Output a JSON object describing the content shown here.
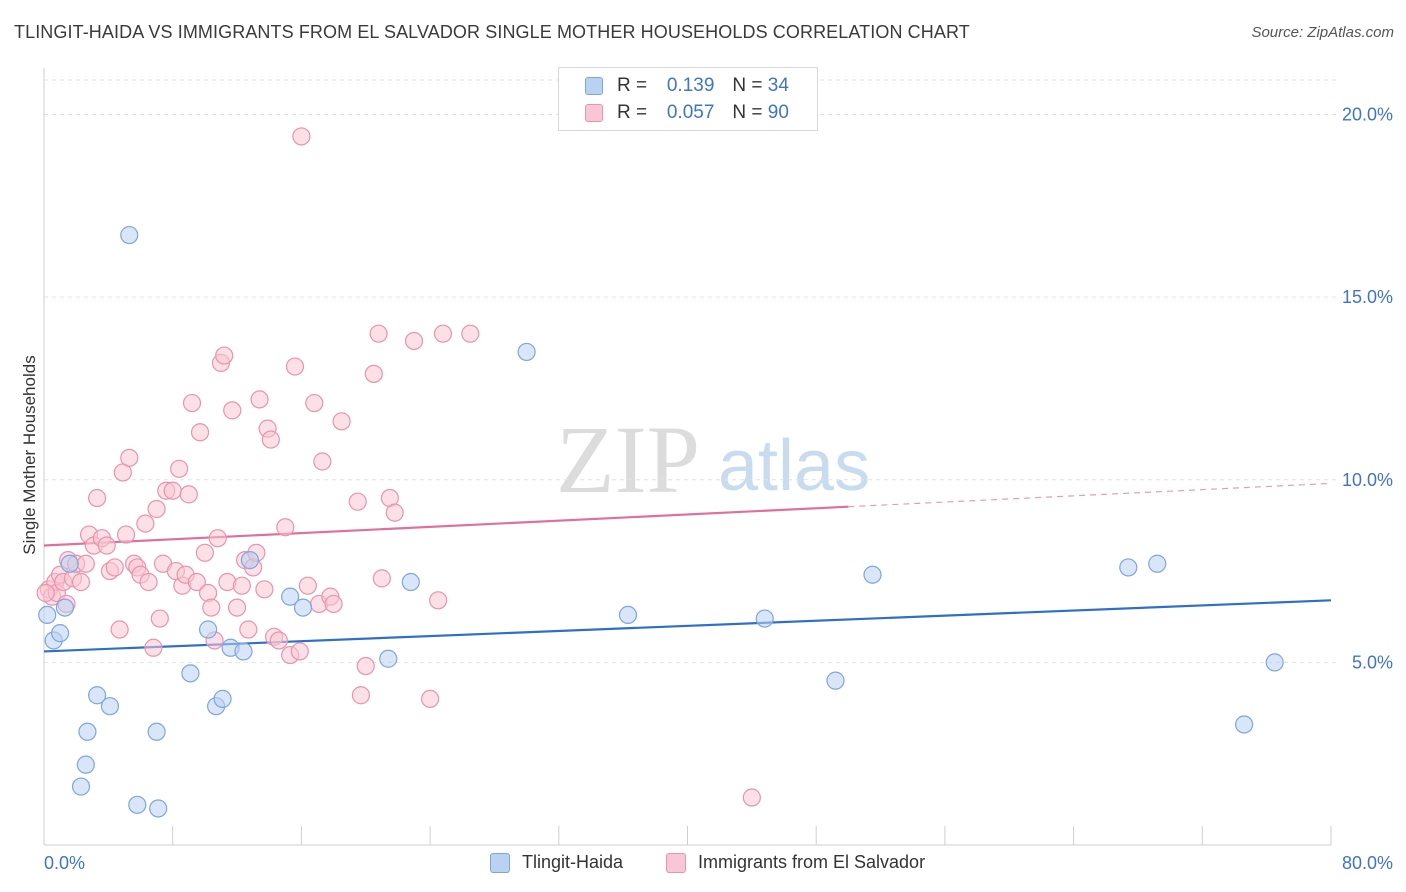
{
  "header": {
    "title": "TLINGIT-HAIDA VS IMMIGRANTS FROM EL SALVADOR SINGLE MOTHER HOUSEHOLDS CORRELATION CHART",
    "source": "Source: ZipAtlas.com"
  },
  "watermark": {
    "zip": "ZIP",
    "atlas": "atlas"
  },
  "legend": {
    "r_label": "R =",
    "n_label": "N =",
    "series": [
      {
        "r": "0.139",
        "n": "34"
      },
      {
        "r": "0.057",
        "n": "90"
      }
    ]
  },
  "colors": {
    "blue_fill": "#b9d2f1",
    "blue_stroke": "#7ea6dc",
    "blue_line": "#2f6fc9",
    "pink_fill": "#f8c6d4",
    "pink_stroke": "#ea93ad",
    "pink_line": "#e0709a",
    "tick_label": "#3f74c8",
    "grid": "#e2e2e2"
  },
  "chart_data": {
    "type": "scatter",
    "title": "TLINGIT-HAIDA VS IMMIGRANTS FROM EL SALVADOR SINGLE MOTHER HOUSEHOLDS CORRELATION CHART",
    "xlabel": "",
    "ylabel": "Single Mother Households",
    "xlim": [
      0,
      80
    ],
    "ylim": [
      0,
      21
    ],
    "x_tick_labels": [
      "0.0%",
      "80.0%"
    ],
    "y_ticks": [
      5,
      10,
      15,
      20
    ],
    "y_tick_labels": [
      "5.0%",
      "10.0%",
      "15.0%",
      "20.0%"
    ],
    "grid": true,
    "legend_position": "top-center",
    "series": [
      {
        "name": "Tlingit-Haida",
        "r": 0.139,
        "n": 34,
        "trend": {
          "x0": 0,
          "y0": 5.3,
          "x1": 80,
          "y1": 6.7,
          "solid_until": 80
        },
        "points": [
          [
            0.2,
            6.3
          ],
          [
            0.6,
            5.6
          ],
          [
            1.0,
            5.8
          ],
          [
            1.3,
            6.5
          ],
          [
            1.6,
            7.7
          ],
          [
            2.3,
            1.6
          ],
          [
            2.6,
            2.2
          ],
          [
            2.7,
            3.1
          ],
          [
            3.3,
            4.1
          ],
          [
            4.1,
            3.8
          ],
          [
            5.3,
            16.7
          ],
          [
            5.8,
            1.1
          ],
          [
            7.0,
            3.1
          ],
          [
            7.1,
            1.0
          ],
          [
            9.1,
            4.7
          ],
          [
            10.2,
            5.9
          ],
          [
            10.7,
            3.8
          ],
          [
            11.1,
            4.0
          ],
          [
            11.6,
            5.4
          ],
          [
            12.4,
            5.3
          ],
          [
            12.8,
            7.8
          ],
          [
            15.3,
            6.8
          ],
          [
            16.1,
            6.5
          ],
          [
            21.4,
            5.1
          ],
          [
            22.8,
            7.2
          ],
          [
            30.0,
            13.5
          ],
          [
            36.3,
            6.3
          ],
          [
            44.8,
            6.2
          ],
          [
            49.2,
            4.5
          ],
          [
            51.5,
            7.4
          ],
          [
            67.4,
            7.6
          ],
          [
            69.2,
            7.7
          ],
          [
            74.6,
            3.3
          ],
          [
            76.5,
            5.0
          ]
        ]
      },
      {
        "name": "Immigrants from El Salvador",
        "r": 0.057,
        "n": 90,
        "trend": {
          "x0": 0,
          "y0": 8.2,
          "x1": 80,
          "y1": 9.9,
          "solid_until": 50
        },
        "points": [
          [
            0.3,
            7.0
          ],
          [
            0.5,
            6.8
          ],
          [
            0.7,
            7.2
          ],
          [
            0.8,
            6.9
          ],
          [
            1.0,
            7.4
          ],
          [
            1.2,
            7.2
          ],
          [
            1.4,
            6.6
          ],
          [
            1.5,
            7.8
          ],
          [
            1.8,
            7.3
          ],
          [
            2.0,
            7.7
          ],
          [
            2.3,
            7.2
          ],
          [
            2.6,
            7.7
          ],
          [
            2.8,
            8.5
          ],
          [
            3.1,
            8.2
          ],
          [
            3.3,
            9.5
          ],
          [
            3.6,
            8.4
          ],
          [
            3.9,
            8.2
          ],
          [
            4.1,
            7.5
          ],
          [
            4.4,
            7.6
          ],
          [
            4.7,
            5.9
          ],
          [
            4.9,
            10.2
          ],
          [
            5.1,
            8.5
          ],
          [
            5.3,
            10.6
          ],
          [
            5.6,
            7.7
          ],
          [
            5.8,
            7.6
          ],
          [
            6.0,
            7.4
          ],
          [
            6.3,
            8.8
          ],
          [
            6.5,
            7.2
          ],
          [
            6.8,
            5.4
          ],
          [
            7.0,
            9.2
          ],
          [
            7.2,
            6.2
          ],
          [
            7.4,
            7.7
          ],
          [
            7.6,
            9.7
          ],
          [
            8.0,
            9.7
          ],
          [
            8.2,
            7.5
          ],
          [
            8.4,
            10.3
          ],
          [
            8.6,
            7.1
          ],
          [
            8.8,
            7.4
          ],
          [
            9.0,
            9.6
          ],
          [
            9.2,
            12.1
          ],
          [
            9.5,
            7.2
          ],
          [
            9.7,
            11.3
          ],
          [
            10.0,
            8.0
          ],
          [
            10.2,
            6.9
          ],
          [
            10.4,
            6.5
          ],
          [
            10.6,
            5.6
          ],
          [
            10.8,
            8.4
          ],
          [
            11.0,
            13.2
          ],
          [
            11.2,
            13.4
          ],
          [
            11.4,
            7.2
          ],
          [
            11.7,
            11.9
          ],
          [
            12.0,
            6.5
          ],
          [
            12.3,
            7.1
          ],
          [
            12.5,
            7.8
          ],
          [
            12.7,
            5.9
          ],
          [
            13.0,
            7.6
          ],
          [
            13.2,
            8.0
          ],
          [
            13.4,
            12.2
          ],
          [
            13.7,
            7.0
          ],
          [
            13.9,
            11.4
          ],
          [
            14.1,
            11.1
          ],
          [
            14.3,
            5.7
          ],
          [
            14.6,
            5.6
          ],
          [
            15.0,
            8.7
          ],
          [
            15.3,
            5.2
          ],
          [
            15.6,
            13.1
          ],
          [
            15.9,
            5.3
          ],
          [
            16.0,
            19.4
          ],
          [
            16.4,
            7.1
          ],
          [
            16.8,
            12.1
          ],
          [
            17.1,
            6.6
          ],
          [
            17.3,
            10.5
          ],
          [
            17.8,
            6.8
          ],
          [
            18.0,
            6.6
          ],
          [
            18.5,
            11.6
          ],
          [
            19.5,
            9.4
          ],
          [
            19.7,
            4.1
          ],
          [
            20.0,
            4.9
          ],
          [
            20.5,
            12.9
          ],
          [
            20.8,
            14.0
          ],
          [
            21.0,
            7.3
          ],
          [
            21.5,
            9.5
          ],
          [
            21.8,
            9.1
          ],
          [
            23.0,
            13.8
          ],
          [
            24.0,
            4.0
          ],
          [
            24.5,
            6.7
          ],
          [
            24.8,
            14.0
          ],
          [
            26.5,
            14.0
          ],
          [
            44.0,
            1.3
          ],
          [
            0.1,
            6.9
          ]
        ]
      }
    ]
  },
  "bottom_legend": [
    {
      "label": "Tlingit-Haida"
    },
    {
      "label": "Immigrants from El Salvador"
    }
  ]
}
